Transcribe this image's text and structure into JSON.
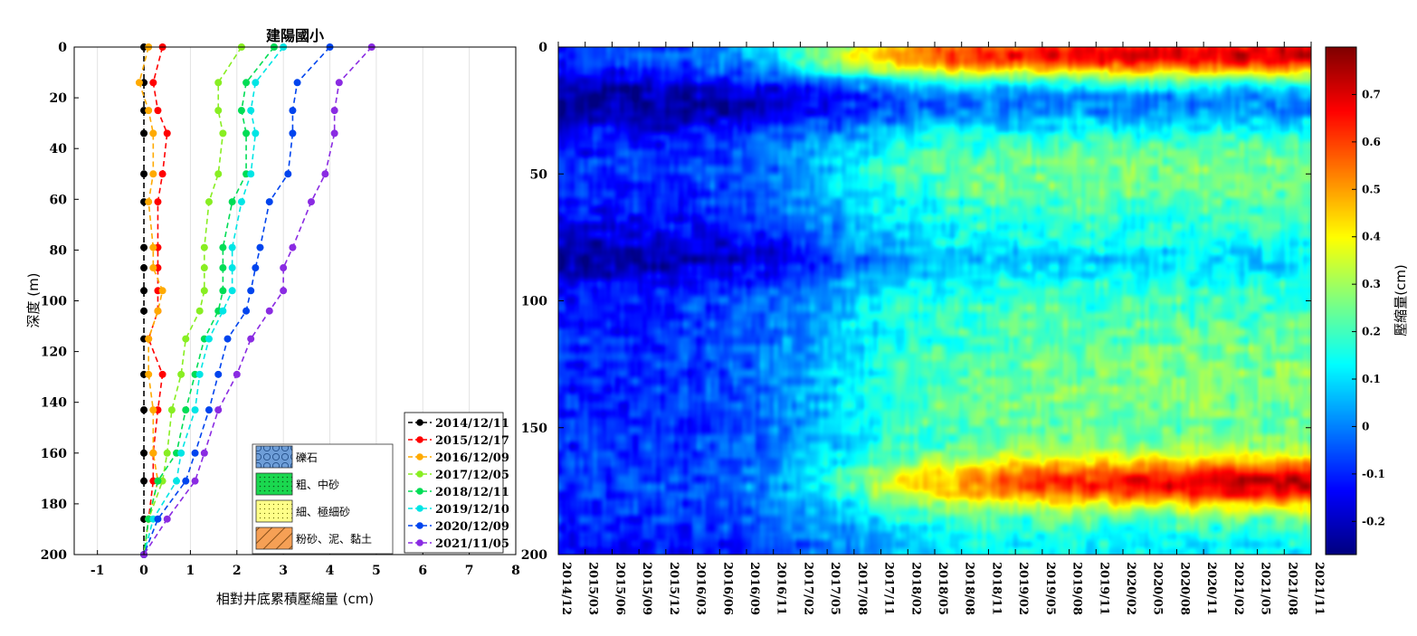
{
  "left_chart": {
    "title": "建陽國小",
    "xlabel": "相對井底累積壓縮量 (cm)",
    "ylabel": "深度 (m)",
    "type": "line",
    "xlim": [
      -1.5,
      8
    ],
    "ylim": [
      200,
      0
    ],
    "x_ticks": [
      -1,
      0,
      1,
      2,
      3,
      4,
      5,
      6,
      7,
      8
    ],
    "y_ticks": [
      0,
      20,
      40,
      60,
      80,
      100,
      120,
      140,
      160,
      180,
      200
    ],
    "grid_x": true,
    "legend_position": "bottom-right",
    "depths": [
      0,
      14,
      25,
      34,
      50,
      61,
      79,
      87,
      96,
      104,
      115,
      129,
      143,
      160,
      171,
      186,
      200
    ],
    "series": [
      {
        "name": "2014/12/11",
        "color": "#000000",
        "values": [
          0,
          0,
          0,
          0,
          0,
          0,
          0,
          0,
          0,
          0,
          0,
          0,
          0,
          0,
          0,
          0,
          0
        ]
      },
      {
        "name": "2015/12/17",
        "color": "#ff0000",
        "values": [
          0.4,
          0.2,
          0.3,
          0.5,
          0.4,
          0.3,
          0.3,
          0.3,
          0.3,
          0.3,
          0.1,
          0.4,
          0.3,
          0.2,
          0.2,
          0.1,
          0
        ]
      },
      {
        "name": "2016/12/09",
        "color": "#ffaa00",
        "values": [
          0.1,
          -0.1,
          0.1,
          0.2,
          0.2,
          0.1,
          0.2,
          0.2,
          0.4,
          0.3,
          0.1,
          0.1,
          0.2,
          0.2,
          0.3,
          0.1,
          0
        ]
      },
      {
        "name": "2017/12/05",
        "color": "#88ee22",
        "values": [
          2.1,
          1.6,
          1.6,
          1.7,
          1.6,
          1.4,
          1.3,
          1.3,
          1.3,
          1.2,
          0.9,
          0.8,
          0.6,
          0.5,
          0.4,
          0.1,
          0
        ]
      },
      {
        "name": "2018/12/11",
        "color": "#00dd55",
        "values": [
          2.8,
          2.2,
          2.1,
          2.2,
          2.2,
          1.9,
          1.7,
          1.7,
          1.7,
          1.6,
          1.3,
          1.1,
          0.9,
          0.7,
          0.3,
          0.1,
          0
        ]
      },
      {
        "name": "2019/12/10",
        "color": "#00e5e5",
        "values": [
          3.0,
          2.4,
          2.3,
          2.4,
          2.3,
          2.1,
          1.9,
          1.9,
          1.9,
          1.7,
          1.4,
          1.2,
          1.1,
          0.8,
          0.7,
          0.2,
          0
        ]
      },
      {
        "name": "2020/12/09",
        "color": "#0044ee",
        "values": [
          4.0,
          3.3,
          3.2,
          3.2,
          3.1,
          2.7,
          2.5,
          2.4,
          2.3,
          2.2,
          1.8,
          1.6,
          1.4,
          1.1,
          0.9,
          0.3,
          0
        ]
      },
      {
        "name": "2021/11/05",
        "color": "#8a2be2",
        "values": [
          4.9,
          4.2,
          4.1,
          4.1,
          3.9,
          3.6,
          3.2,
          3.0,
          3.0,
          2.7,
          2.3,
          2.0,
          1.6,
          1.3,
          1.1,
          0.5,
          0
        ]
      }
    ],
    "soil_legend": [
      {
        "label": "礫石",
        "color": "#6e9ed8",
        "pattern": "gravel"
      },
      {
        "label": "粗、中砂",
        "color": "#1ad84f",
        "pattern": "dots"
      },
      {
        "label": "細、極細砂",
        "color": "#ffff88",
        "pattern": "fine-dots"
      },
      {
        "label": "粉砂、泥、黏土",
        "color": "#f6a055",
        "pattern": "hatch"
      }
    ]
  },
  "right_chart": {
    "type": "heatmap",
    "colorbar_label": "壓縮量(cm)",
    "colorbar_ticks": [
      -0.2,
      -0.1,
      0,
      0.1,
      0.2,
      0.3,
      0.4,
      0.5,
      0.6,
      0.7
    ],
    "color_range": [
      -0.27,
      0.8
    ],
    "y_ticks": [
      0,
      50,
      100,
      150,
      200
    ],
    "ylim": [
      0,
      200
    ],
    "x_ticks": [
      "2014/12",
      "2015/03",
      "2015/06",
      "2015/09",
      "2015/12",
      "2016/03",
      "2016/06",
      "2016/09",
      "2016/11",
      "2017/02",
      "2017/05",
      "2017/08",
      "2017/11",
      "2018/02",
      "2018/05",
      "2018/08",
      "2018/11",
      "2019/02",
      "2019/05",
      "2019/08",
      "2019/11",
      "2020/02",
      "2020/05",
      "2020/08",
      "2020/11",
      "2021/02",
      "2021/05",
      "2021/08",
      "2021/11"
    ]
  }
}
